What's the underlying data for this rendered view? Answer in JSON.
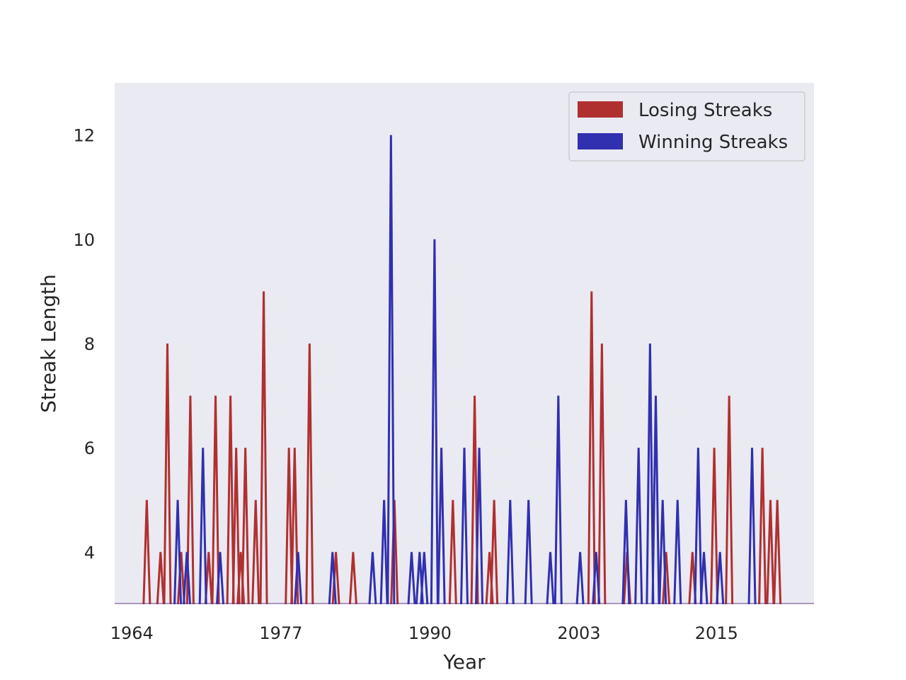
{
  "chart_data": {
    "type": "line",
    "title": "",
    "xlabel": "Year",
    "ylabel": "Streak Length",
    "xlim": [
      1962.5,
      2023.5
    ],
    "ylim": [
      3,
      13
    ],
    "x_ticks": [
      1964,
      1977,
      1990,
      2003,
      2015
    ],
    "y_ticks": [
      4,
      6,
      8,
      10,
      12
    ],
    "grid": false,
    "background": "#eaeaf2",
    "legend": {
      "position": "top-right"
    },
    "series": [
      {
        "name": "Losing Streaks",
        "color": "#b03030",
        "values": [
          [
            1965.3,
            5
          ],
          [
            1966.5,
            4
          ],
          [
            1967.1,
            8
          ],
          [
            1968.3,
            4
          ],
          [
            1969.1,
            7
          ],
          [
            1970.7,
            4
          ],
          [
            1971.3,
            7
          ],
          [
            1972.6,
            7
          ],
          [
            1973.1,
            6
          ],
          [
            1973.5,
            4
          ],
          [
            1973.9,
            6
          ],
          [
            1974.8,
            5
          ],
          [
            1975.5,
            9
          ],
          [
            1977.7,
            6
          ],
          [
            1978.2,
            6
          ],
          [
            1979.5,
            8
          ],
          [
            1981.8,
            4
          ],
          [
            1983.3,
            4
          ],
          [
            1986.9,
            5
          ],
          [
            1992.0,
            5
          ],
          [
            1993.9,
            7
          ],
          [
            1995.2,
            4
          ],
          [
            1995.6,
            5
          ],
          [
            2004.1,
            9
          ],
          [
            2005.0,
            8
          ],
          [
            2007.2,
            4
          ],
          [
            2010.6,
            4
          ],
          [
            2012.9,
            4
          ],
          [
            2014.8,
            6
          ],
          [
            2016.1,
            7
          ],
          [
            2019.0,
            6
          ],
          [
            2019.7,
            5
          ],
          [
            2020.3,
            5
          ]
        ]
      },
      {
        "name": "Winning Streaks",
        "color": "#3030b0",
        "values": [
          [
            1968.0,
            5
          ],
          [
            1968.8,
            4
          ],
          [
            1970.2,
            6
          ],
          [
            1971.7,
            4
          ],
          [
            1978.5,
            4
          ],
          [
            1981.5,
            4
          ],
          [
            1985.0,
            4
          ],
          [
            1986.0,
            5
          ],
          [
            1986.6,
            12
          ],
          [
            1988.4,
            4
          ],
          [
            1989.1,
            4
          ],
          [
            1989.5,
            4
          ],
          [
            1990.4,
            10
          ],
          [
            1991.0,
            6
          ],
          [
            1993.0,
            6
          ],
          [
            1994.3,
            6
          ],
          [
            1997.0,
            5
          ],
          [
            1998.6,
            5
          ],
          [
            2000.5,
            4
          ],
          [
            2001.2,
            7
          ],
          [
            2003.1,
            4
          ],
          [
            2004.5,
            4
          ],
          [
            2007.1,
            5
          ],
          [
            2008.2,
            6
          ],
          [
            2009.2,
            8
          ],
          [
            2009.7,
            7
          ],
          [
            2010.3,
            5
          ],
          [
            2011.6,
            5
          ],
          [
            2013.4,
            6
          ],
          [
            2013.9,
            4
          ],
          [
            2015.3,
            4
          ],
          [
            2018.1,
            6
          ]
        ]
      }
    ]
  }
}
